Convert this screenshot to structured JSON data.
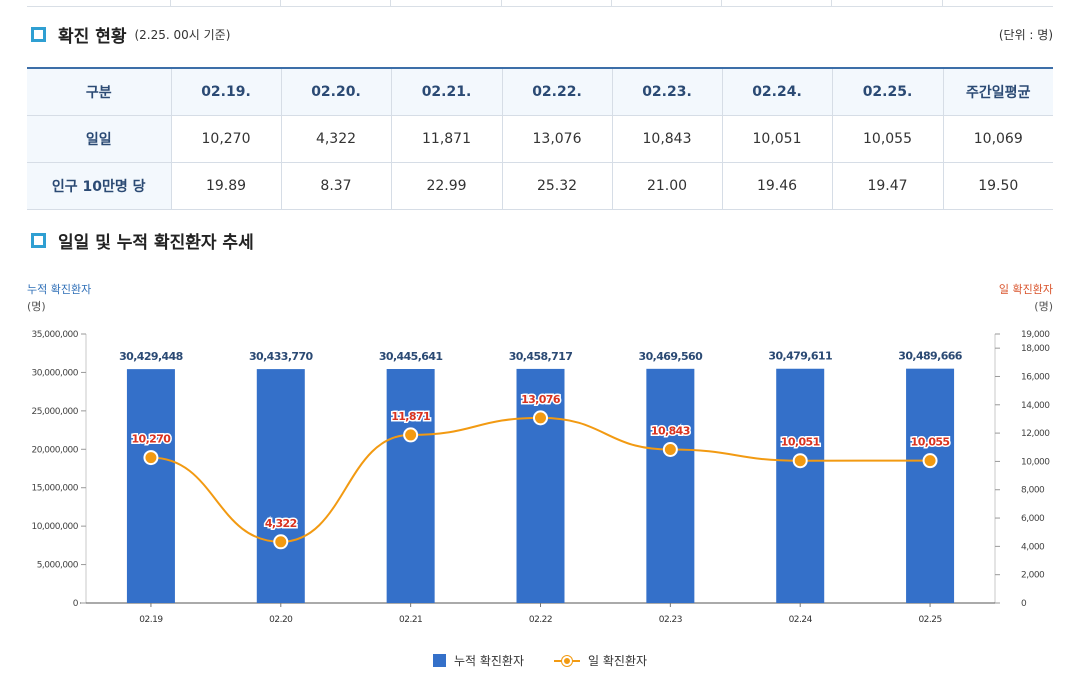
{
  "section1": {
    "title": "확진 현황",
    "subtitle": "(2.25. 00시 기준)",
    "unit": "(단위 : 명)"
  },
  "table": {
    "header": [
      "구분",
      "02.19.",
      "02.20.",
      "02.21.",
      "02.22.",
      "02.23.",
      "02.24.",
      "02.25.",
      "주간일평균"
    ],
    "rows": [
      {
        "label": "일일",
        "values": [
          "10,270",
          "4,322",
          "11,871",
          "13,076",
          "10,843",
          "10,051",
          "10,055",
          "10,069"
        ]
      },
      {
        "label": "인구 10만명 당",
        "values": [
          "19.89",
          "8.37",
          "22.99",
          "25.32",
          "21.00",
          "19.46",
          "19.47",
          "19.50"
        ]
      }
    ]
  },
  "section2": {
    "title": "일일 및 누적 확진환자 추세"
  },
  "chart_labels": {
    "left_axis_title": "누적 확진환자",
    "left_axis_unit": "(명)",
    "right_axis_title": "일 확진환자",
    "right_axis_unit": "(명)"
  },
  "colors": {
    "bar": "#3470c9",
    "line": "#f29a12",
    "bar_label": "#2b4a74",
    "line_label": "#d9321f",
    "accent": "#2f9fd2"
  },
  "chart_data": {
    "type": "bar",
    "categories": [
      "02.19",
      "02.20",
      "02.21",
      "02.22",
      "02.23",
      "02.24",
      "02.25"
    ],
    "series": [
      {
        "name": "누적 확진환자",
        "type": "bar",
        "axis": "left",
        "values": [
          30429448,
          30433770,
          30445641,
          30458717,
          30469560,
          30479611,
          30489666
        ],
        "labels": [
          "30,429,448",
          "30,433,770",
          "30,445,641",
          "30,458,717",
          "30,469,560",
          "30,479,611",
          "30,489,666"
        ]
      },
      {
        "name": "일 확진환자",
        "type": "line",
        "axis": "right",
        "values": [
          10270,
          4322,
          11871,
          13076,
          10843,
          10051,
          10055
        ],
        "labels": [
          "10,270",
          "4,322",
          "11,871",
          "13,076",
          "10,843",
          "10,051",
          "10,055"
        ]
      }
    ],
    "left_axis": {
      "ylim": [
        0,
        35000000
      ],
      "ticks": [
        0,
        5000000,
        10000000,
        15000000,
        20000000,
        25000000,
        30000000,
        35000000
      ],
      "tick_labels": [
        "0",
        "5,000,000",
        "10,000,000",
        "15,000,000",
        "20,000,000",
        "25,000,000",
        "30,000,000",
        "35,000,000"
      ]
    },
    "right_axis": {
      "ylim": [
        0,
        19000
      ],
      "ticks": [
        0,
        2000,
        4000,
        6000,
        8000,
        10000,
        12000,
        14000,
        16000,
        18000,
        19000
      ],
      "tick_labels": [
        "0",
        "2,000",
        "4,000",
        "6,000",
        "8,000",
        "10,000",
        "12,000",
        "14,000",
        "16,000",
        "18,000",
        "19,000"
      ]
    },
    "legend": [
      "누적 확진환자",
      "일 확진환자"
    ],
    "legend_position": "bottom",
    "grid": false
  }
}
